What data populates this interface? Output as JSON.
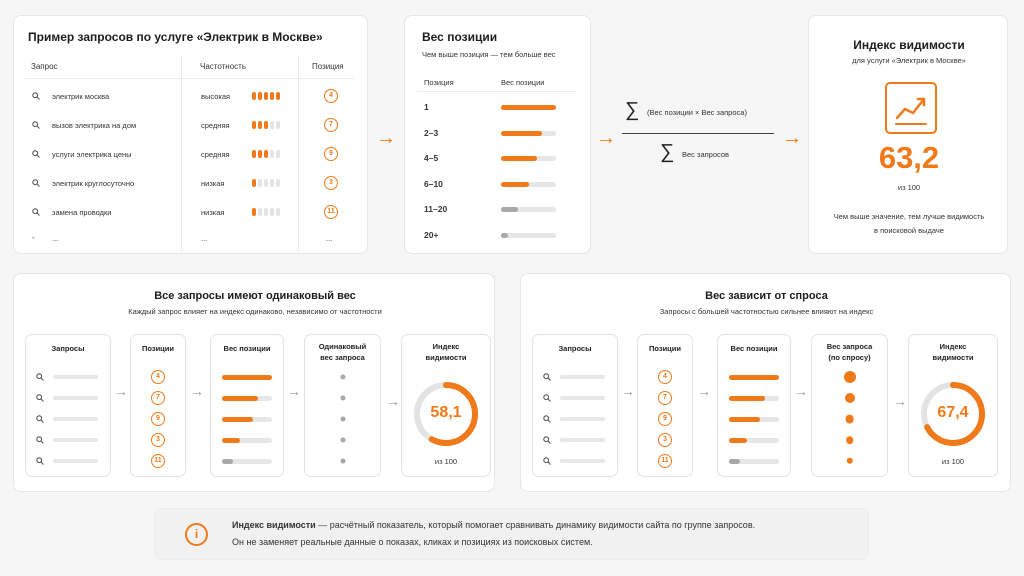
{
  "query_card": {
    "title": "Пример запросов по услуге «Электрик в Москве»",
    "col_query": "Запрос",
    "col_freq": "Частотность",
    "col_pos": "Позиция",
    "rows": [
      {
        "query": "электрик москва",
        "freq": "высокая",
        "level": 5,
        "pos": "4"
      },
      {
        "query": "вызов электрика на дом",
        "freq": "средняя",
        "level": 3,
        "pos": "7"
      },
      {
        "query": "услуги электрика цены",
        "freq": "средняя",
        "level": 3,
        "pos": "9"
      },
      {
        "query": "электрик круглосуточно",
        "freq": "низкая",
        "level": 1,
        "pos": "3"
      },
      {
        "query": "замена проводки",
        "freq": "низкая",
        "level": 1,
        "pos": "11"
      }
    ],
    "ellipsis_bullet": "◦",
    "ellipsis": "..."
  },
  "weight_card": {
    "title": "Вес позиции",
    "subtitle": "Чем выше позиция — тем больше вес",
    "col_pos": "Позиция",
    "col_weight": "Вес позиции",
    "rows": [
      {
        "pos": "1",
        "weight": 1.0,
        "gray": false
      },
      {
        "pos": "2–3",
        "weight": 0.75,
        "gray": false
      },
      {
        "pos": "4–5",
        "weight": 0.65,
        "gray": false
      },
      {
        "pos": "6–10",
        "weight": 0.5,
        "gray": false
      },
      {
        "pos": "11–20",
        "weight": 0.3,
        "gray": true
      },
      {
        "pos": "20+",
        "weight": 0.12,
        "gray": true
      }
    ]
  },
  "formula": {
    "sigma": "∑",
    "numerator": "(Вес позиции × Вес запроса)",
    "denominator": "Вес запросов"
  },
  "index_card": {
    "title": "Индекс видимости",
    "subtitle": "для услуги «Электрик в Москве»",
    "value": "63,2",
    "of": "из 100",
    "note_line1": "Чем выше значение, тем лучше видимость",
    "note_line2": "в поисковой выдаче"
  },
  "equal_panel": {
    "title": "Все запросы имеют одинаковый вес",
    "subtitle": "Каждый запрос влияет на индекс одинаково, независимо от частотности",
    "col_queries": "Запросы",
    "col_positions": "Позиции",
    "col_weight": "Вес позиции",
    "col_qweight_1": "Одинаковый",
    "col_qweight_2": "вес запроса",
    "col_index_1": "Индекс",
    "col_index_2": "видимости",
    "positions": [
      "4",
      "7",
      "9",
      "3",
      "11"
    ],
    "weights": [
      1.0,
      0.72,
      0.62,
      0.35,
      0.22
    ],
    "value": "58,1",
    "percent": 58.1,
    "of": "из 100"
  },
  "demand_panel": {
    "title": "Вес зависит от спроса",
    "subtitle": "Запросы с большей частотностью сильнее влияют на индекс",
    "col_queries": "Запросы",
    "col_positions": "Позиции",
    "col_weight": "Вес позиции",
    "col_qweight_1": "Вес запроса",
    "col_qweight_2": "(по спросу)",
    "col_index_1": "Индекс",
    "col_index_2": "видимости",
    "positions": [
      "4",
      "7",
      "9",
      "3",
      "11"
    ],
    "weights": [
      1.0,
      0.72,
      0.62,
      0.35,
      0.22
    ],
    "demand": [
      1.0,
      0.75,
      0.6,
      0.45,
      0.3
    ],
    "value": "67,4",
    "percent": 67.4,
    "of": "из 100"
  },
  "footer": {
    "icon": "info-icon",
    "bold": "Индекс видимости",
    "text": " — расчётный показатель, который помогает сравнивать динамику видимости сайта по группе запросов.",
    "line2": "Он не заменяет реальные данные о показах, кликах и позициях из поисковых систем."
  },
  "colors": {
    "accent": "#f07a1a",
    "gray": "#a8a8a8"
  }
}
